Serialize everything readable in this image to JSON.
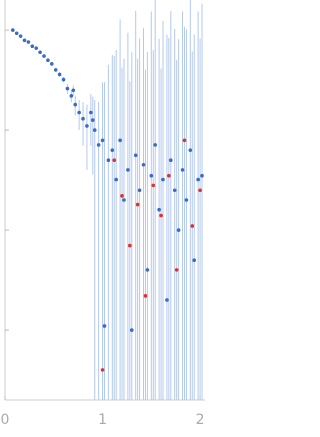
{
  "chart_data": {
    "type": "scatter",
    "log_y": true,
    "xlim": [
      0,
      2.03
    ],
    "xticks": [
      0,
      1,
      2
    ],
    "ylim": [
      0.0002,
      2
    ],
    "yticks": [
      1,
      0.1,
      0.01,
      0.001
    ],
    "error_color": "#b3c9ec",
    "series": [
      {
        "color": "#3a6bc9",
        "x": [
          0.08,
          0.12,
          0.16,
          0.2,
          0.24,
          0.28,
          0.32,
          0.36,
          0.4,
          0.44,
          0.48,
          0.52,
          0.56,
          0.6,
          0.64,
          0.68,
          0.7,
          0.72,
          0.76,
          0.8,
          0.84,
          0.88,
          0.9,
          0.92,
          0.96,
          1.0,
          1.02,
          1.06,
          1.1,
          1.14,
          1.18,
          1.22,
          1.26,
          1.3,
          1.34,
          1.38,
          1.42,
          1.46,
          1.5,
          1.54,
          1.58,
          1.62,
          1.66,
          1.7,
          1.74,
          1.78,
          1.82,
          1.86,
          1.9,
          1.94,
          1.98,
          2.02
        ],
        "values": [
          1.0,
          0.93,
          0.87,
          0.79,
          0.76,
          0.69,
          0.66,
          0.6,
          0.55,
          0.5,
          0.46,
          0.4,
          0.36,
          0.32,
          0.26,
          0.22,
          0.25,
          0.18,
          0.15,
          0.13,
          0.11,
          0.15,
          0.126,
          0.1,
          0.071,
          0.079,
          0.0011,
          0.05,
          0.063,
          0.032,
          0.079,
          0.02,
          0.04,
          0.001,
          0.056,
          0.025,
          0.045,
          0.004,
          0.035,
          0.071,
          0.016,
          0.032,
          0.002,
          0.05,
          0.025,
          0.01,
          0.04,
          0.02,
          0.063,
          0.005,
          0.032,
          0.035
        ],
        "errors": [
          0.02,
          0.02,
          0.02,
          0.02,
          0.02,
          0.02,
          0.02,
          0.02,
          0.02,
          0.02,
          0.02,
          0.02,
          0.02,
          0.02,
          0.03,
          0.03,
          0.03,
          0.04,
          0.05,
          0.06,
          0.07,
          0.08,
          0.09,
          0.1,
          0.12,
          0.15,
          0.3,
          0.4,
          0.5,
          0.6,
          1.2,
          0.5,
          0.9,
          0.6,
          1.5,
          0.8,
          1.0,
          0.6,
          1.5,
          2.0,
          0.8,
          1.2,
          0.9,
          1.5,
          1.0,
          0.8,
          1.5,
          1.0,
          2.0,
          0.9,
          1.5,
          1.8
        ]
      },
      {
        "color": "#e03030",
        "x": [
          1.0,
          1.12,
          1.2,
          1.28,
          1.36,
          1.44,
          1.52,
          1.6,
          1.68,
          1.76,
          1.84,
          1.92,
          2.0
        ],
        "values": [
          0.0004,
          0.05,
          0.022,
          0.007,
          0.018,
          0.0022,
          0.028,
          0.014,
          0.035,
          0.004,
          0.079,
          0.011,
          0.025
        ],
        "errors": [
          0.3,
          0.5,
          0.4,
          0.3,
          0.5,
          0.4,
          0.6,
          0.4,
          0.8,
          0.5,
          1.0,
          0.6,
          0.8
        ]
      }
    ]
  }
}
